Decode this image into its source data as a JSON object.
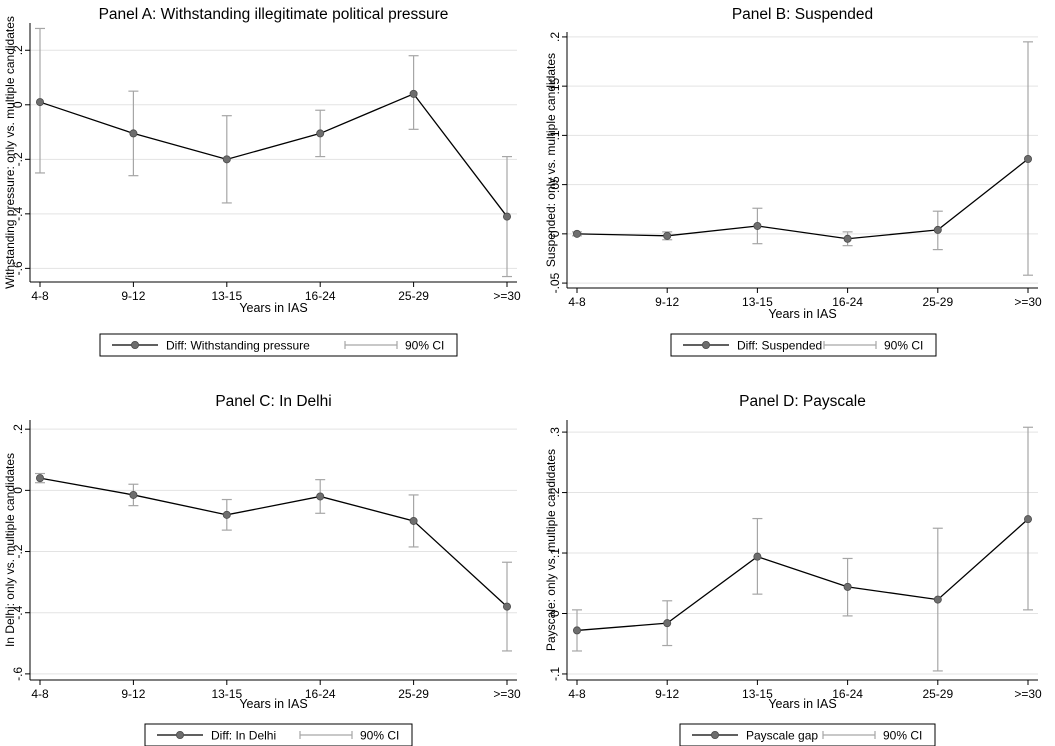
{
  "chart_data": [
    {
      "type": "line",
      "title": "Panel A: Withstanding illegitimate political pressure",
      "xlabel": "Years in IAS",
      "ylabel": "Withstanding pressure: only vs. multiple candidates",
      "categories": [
        "4-8",
        "9-12",
        "13-15",
        "16-24",
        "25-29",
        ">=30"
      ],
      "ylim": [
        -0.65,
        0.3
      ],
      "yticks": [
        0.2,
        0,
        -0.2,
        -0.4,
        -0.6
      ],
      "ytick_labels": [
        ".2",
        "0",
        "-.2",
        "-.4",
        "-.6"
      ],
      "grid": true,
      "series": [
        {
          "name": "Diff: Withstanding pressure",
          "values": [
            0.01,
            -0.105,
            -0.2,
            -0.105,
            0.04,
            -0.41
          ],
          "ci_low": [
            -0.25,
            -0.26,
            -0.36,
            -0.19,
            -0.09,
            -0.63
          ],
          "ci_high": [
            0.28,
            0.05,
            -0.04,
            -0.02,
            0.18,
            -0.19
          ]
        }
      ],
      "ci_legend": "90% CI",
      "legend_position": "bottom"
    },
    {
      "type": "line",
      "title": "Panel B: Suspended",
      "xlabel": "Years in IAS",
      "ylabel": "Suspended: only vs. multiple candidates",
      "categories": [
        "4-8",
        "9-12",
        "13-15",
        "16-24",
        "25-29",
        ">=30"
      ],
      "ylim": [
        -0.055,
        0.205
      ],
      "yticks": [
        0.2,
        0.15,
        0.1,
        0.05,
        0,
        -0.05
      ],
      "ytick_labels": [
        ".2",
        ".15",
        ".1",
        ".05",
        "0",
        "-.05"
      ],
      "grid": true,
      "series": [
        {
          "name": "Diff: Suspended",
          "values": [
            0.0,
            -0.002,
            0.008,
            -0.005,
            0.004,
            0.076
          ],
          "ci_low": [
            -0.002,
            -0.006,
            -0.01,
            -0.012,
            -0.016,
            -0.042
          ],
          "ci_high": [
            0.002,
            0.002,
            0.026,
            0.002,
            0.023,
            0.195
          ]
        }
      ],
      "ci_legend": "90% CI",
      "legend_position": "bottom"
    },
    {
      "type": "line",
      "title": "Panel C: In Delhi",
      "xlabel": "Years in IAS",
      "ylabel": "In Delhi: only vs. multiple candidates",
      "categories": [
        "4-8",
        "9-12",
        "13-15",
        "16-24",
        "25-29",
        ">=30"
      ],
      "ylim": [
        -0.62,
        0.23
      ],
      "yticks": [
        0.2,
        0,
        -0.2,
        -0.4,
        -0.6
      ],
      "ytick_labels": [
        ".2",
        "0",
        "-.2",
        "-.4",
        "-.6"
      ],
      "grid": true,
      "series": [
        {
          "name": "Diff: In Delhi",
          "values": [
            0.04,
            -0.015,
            -0.08,
            -0.02,
            -0.1,
            -0.38
          ],
          "ci_low": [
            0.025,
            -0.05,
            -0.13,
            -0.075,
            -0.185,
            -0.525
          ],
          "ci_high": [
            0.055,
            0.02,
            -0.03,
            0.035,
            -0.015,
            -0.235
          ]
        }
      ],
      "ci_legend": "90% CI",
      "legend_position": "bottom"
    },
    {
      "type": "line",
      "title": "Panel D: Payscale",
      "xlabel": "Years in IAS",
      "ylabel": "Payscale: only vs. multiple candidates",
      "categories": [
        "4-8",
        "9-12",
        "13-15",
        "16-24",
        "25-29",
        ">=30"
      ],
      "ylim": [
        -0.11,
        0.32
      ],
      "yticks": [
        0.3,
        0.2,
        0.1,
        0,
        -0.1
      ],
      "ytick_labels": [
        ".3",
        ".2",
        ".1",
        "0",
        "-.1"
      ],
      "grid": true,
      "series": [
        {
          "name": "Payscale gap",
          "values": [
            -0.028,
            -0.016,
            0.094,
            0.044,
            0.023,
            0.156
          ],
          "ci_low": [
            -0.062,
            -0.053,
            0.032,
            -0.004,
            -0.095,
            0.006
          ],
          "ci_high": [
            0.006,
            0.021,
            0.157,
            0.091,
            0.141,
            0.308
          ]
        }
      ],
      "ci_legend": "90% CI",
      "legend_position": "bottom"
    }
  ],
  "colors": {
    "line": "#000000",
    "marker_fill": "#6e6e6e",
    "ci": "#a6a6a6",
    "grid": "#e3e3e3",
    "axis": "#000000",
    "background": "#ffffff"
  }
}
